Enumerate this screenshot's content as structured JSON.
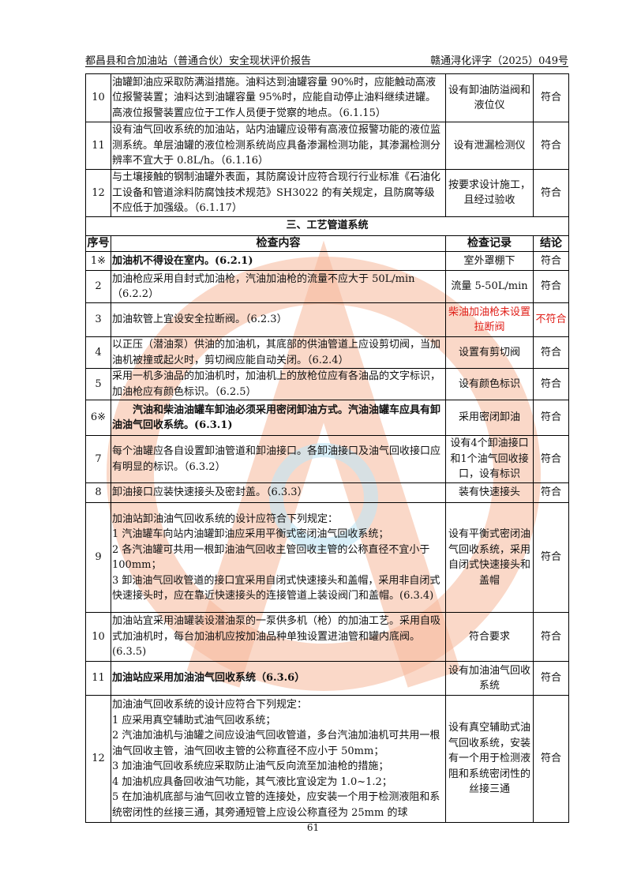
{
  "header": {
    "left": "都昌县和合加油站（普通合伙）安全现状评价报告",
    "right": "赣通浔化评字（2025）049号"
  },
  "colors": {
    "watermark_orange": "#f6b89a",
    "watermark_blue": "#bfe6f5",
    "nonconform_red": "#e0201a"
  },
  "table": {
    "rows_before": [
      {
        "no": "10",
        "content": "油罐卸油应采取防满溢措施。油料达到油罐容量 90%时，应能触动高液位报警装置；油料达到油罐容量 95%时，应能自动停止油料继续进罐。高液位报警装置应位于工作人员便于觉察的地点。（6.1.15）",
        "record": "设有卸油防溢阀和液位仪",
        "result": "符合"
      },
      {
        "no": "11",
        "content": "设有油气回收系统的加油站，站内油罐应设带有高液位报警功能的液位监测系统。单层油罐的液位检测系统尚应具备渗漏检测功能，其渗漏检测分辨率不宜大于 0.8L/h。（6.1.16）",
        "record": "设有泄漏检测仪",
        "result": "符合"
      },
      {
        "no": "12",
        "content": "与土壤接触的钢制油罐外表面，其防腐设计应符合现行行业标准《石油化工设备和管道涂料防腐蚀技术规范》SH3022 的有关规定，且防腐等级不应低于加强级。（6.1.17）",
        "record": "按要求设计施工，且经过验收",
        "result": "符合"
      }
    ],
    "section_title": "三、工艺管道系统",
    "columns": {
      "no": "序号",
      "content": "检查内容",
      "record": "检查记录",
      "result": "结论"
    },
    "rows": [
      {
        "no": "1※",
        "content": "加油机不得设在室内。(6.2.1)",
        "record": "室外罩棚下",
        "result": "符合",
        "bold": true
      },
      {
        "no": "2",
        "content": "加油枪应采用自封式加油枪，汽油加油枪的流量不应大于 50L/min（6.2.2）",
        "record": "流量 5-50L/min",
        "result": "符合"
      },
      {
        "no": "3",
        "content": "加油软管上宜设安全拉断阀。（6.2.3）",
        "record": "柴油加油枪未设置拉断阀",
        "result": "不符合",
        "red": true
      },
      {
        "no": "4",
        "content": "以正压（潜油泵）供油的加油机，其底部的供油管道上应设剪切阀，当加油机被撞或起火时，剪切阀应能自动关闭。（6.2.4）",
        "record": "设置有剪切阀",
        "result": "符合"
      },
      {
        "no": "5",
        "content": "采用一机多油品的加油机时，加油机上的放枪位应有各油品的文字标识，加油枪应有颜色标识。（6.2.5）",
        "record": "设有颜色标识",
        "result": "符合"
      },
      {
        "no": "6※",
        "content": "　　汽油和柴油油罐车卸油必须采用密闭卸油方式。汽油油罐车应具有卸油油气回收系统。(6.3.1)",
        "record": "采用密闭卸油",
        "result": "符合",
        "bold": true
      },
      {
        "no": "7",
        "content": "每个油罐应各自设置卸油管道和卸油接口。各卸油接口及油气回收接口应有明显的标识。（6.3.2）",
        "record": "设有4个卸油接口和1个油气回收接口，设有标识",
        "result": "符合"
      },
      {
        "no": "8",
        "content": "卸油接口应装快速接头及密封盖。（6.3.3）",
        "record": "装有快速接头",
        "result": "符合"
      },
      {
        "no": "9",
        "content": "加油站卸油油气回收系统的设计应符合下列规定：\n1  汽油罐车向站内油罐卸油应采用平衡式密闭油气回收系统；\n2  各汽油罐可共用一根卸油油气回收主管回收主管的公称直径不宜小于 100mm；\n 3  卸油油气回收管道的接口宜采用自闭式快速接头和盖帽，采用非自闭式快速接头时，应在靠近快速接头的连接管道上装设阀门和盖帽。(6.3.4)",
        "record": "设有平衡式密闭油气回收系统，采用自闭式快速接头和盖帽",
        "result": "符合"
      },
      {
        "no": "10",
        "content": "加油站宜采用油罐装设潜油泵的一泵供多机（枪）的加油工艺。采用自吸式加油机时，每台加油机应按加油品种单独设置进油管和罐内底阀。(6.3.5)",
        "record": "符合要求",
        "result": "符合"
      },
      {
        "no": "11",
        "content": "加油站应采用加油油气回收系统（6.3.6）",
        "record": "设有加油油气回收系统",
        "result": "符合",
        "bold": true
      },
      {
        "no": "12",
        "content": "加油油气回收系统的设计应符合下列规定：\n1  应采用真空辅助式油气回收系统；\n2  汽油加油机与油罐之间应设油气回收管道，多台汽油加油机可共用一根油气回收主管，油气回收主管的公称直径不应小于 50mm；\n3  加油油气回收系统应采取防止油气反向流至加油枪的措施；\n4  加油机应具备回收油气功能，其气液比宜设定为 1.0~1.2；\n5  在加油机底部与油气回收立管的连接处，应安装一个用于检测液阻和系统密闭性的丝接三通，其旁通短管上应设公称直径为 25mm 的球",
        "record": "设有真空辅助式油气回收系统，安装有一个用于检测液阻和系统密闭性的丝接三通",
        "result": "符合"
      }
    ]
  },
  "page_number": "61"
}
